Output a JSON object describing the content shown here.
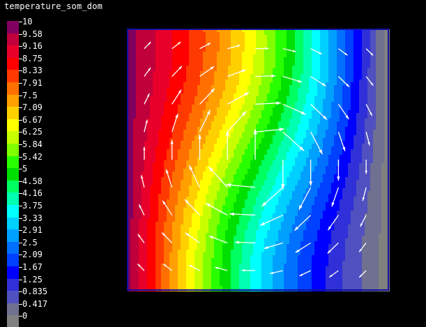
{
  "title": "temperature_som_dom",
  "chart_data": {
    "type": "heatmap",
    "title": "temperature_som_dom",
    "legend": {
      "placement": "left",
      "labels": [
        "10",
        "9.58",
        "9.16",
        "8.75",
        "8.33",
        "7.91",
        "7.5",
        "7.09",
        "6.67",
        "6.25",
        "5.84",
        "5.42",
        "5",
        "4.58",
        "4.16",
        "3.75",
        "3.33",
        "2.91",
        "2.5",
        "2.09",
        "1.67",
        "1.25",
        "0.835",
        "0.417",
        "0"
      ],
      "colors": [
        "#800060",
        "#c0003a",
        "#e8002a",
        "#ff0000",
        "#ff3a00",
        "#ff7000",
        "#ffa000",
        "#ffd000",
        "#ffff00",
        "#c8ff00",
        "#80ff00",
        "#28ff00",
        "#00e000",
        "#00ff60",
        "#00ffb0",
        "#00ffff",
        "#00d0ff",
        "#00a0ff",
        "#0070ff",
        "#0040ff",
        "#0000ff",
        "#3030d8",
        "#5050c0",
        "#707090",
        "#808080"
      ]
    },
    "value_range": [
      0,
      10
    ],
    "field": "temperature",
    "vectors": "velocity arrows (white)"
  }
}
